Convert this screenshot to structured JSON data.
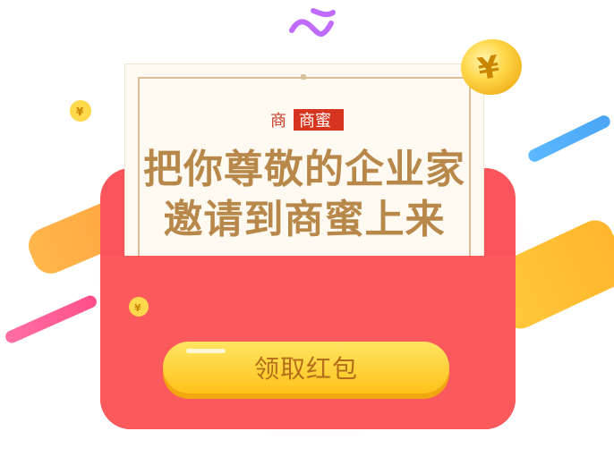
{
  "letter": {
    "headline_line1": "把你尊敬的企业家",
    "headline_line2": "邀请到商蜜上来",
    "logo_text": "商蜜"
  },
  "cta": {
    "label": "领取红包"
  },
  "icons": {
    "coin": "yen-coin-icon",
    "logo": "shangmi-logo-icon"
  },
  "colors": {
    "envelope_red": "#f9555a",
    "letter_cream": "#fffaf1",
    "headline_gold": "#b8884a",
    "button_yellow": "#ffd23a",
    "button_text": "#b46d1a"
  }
}
